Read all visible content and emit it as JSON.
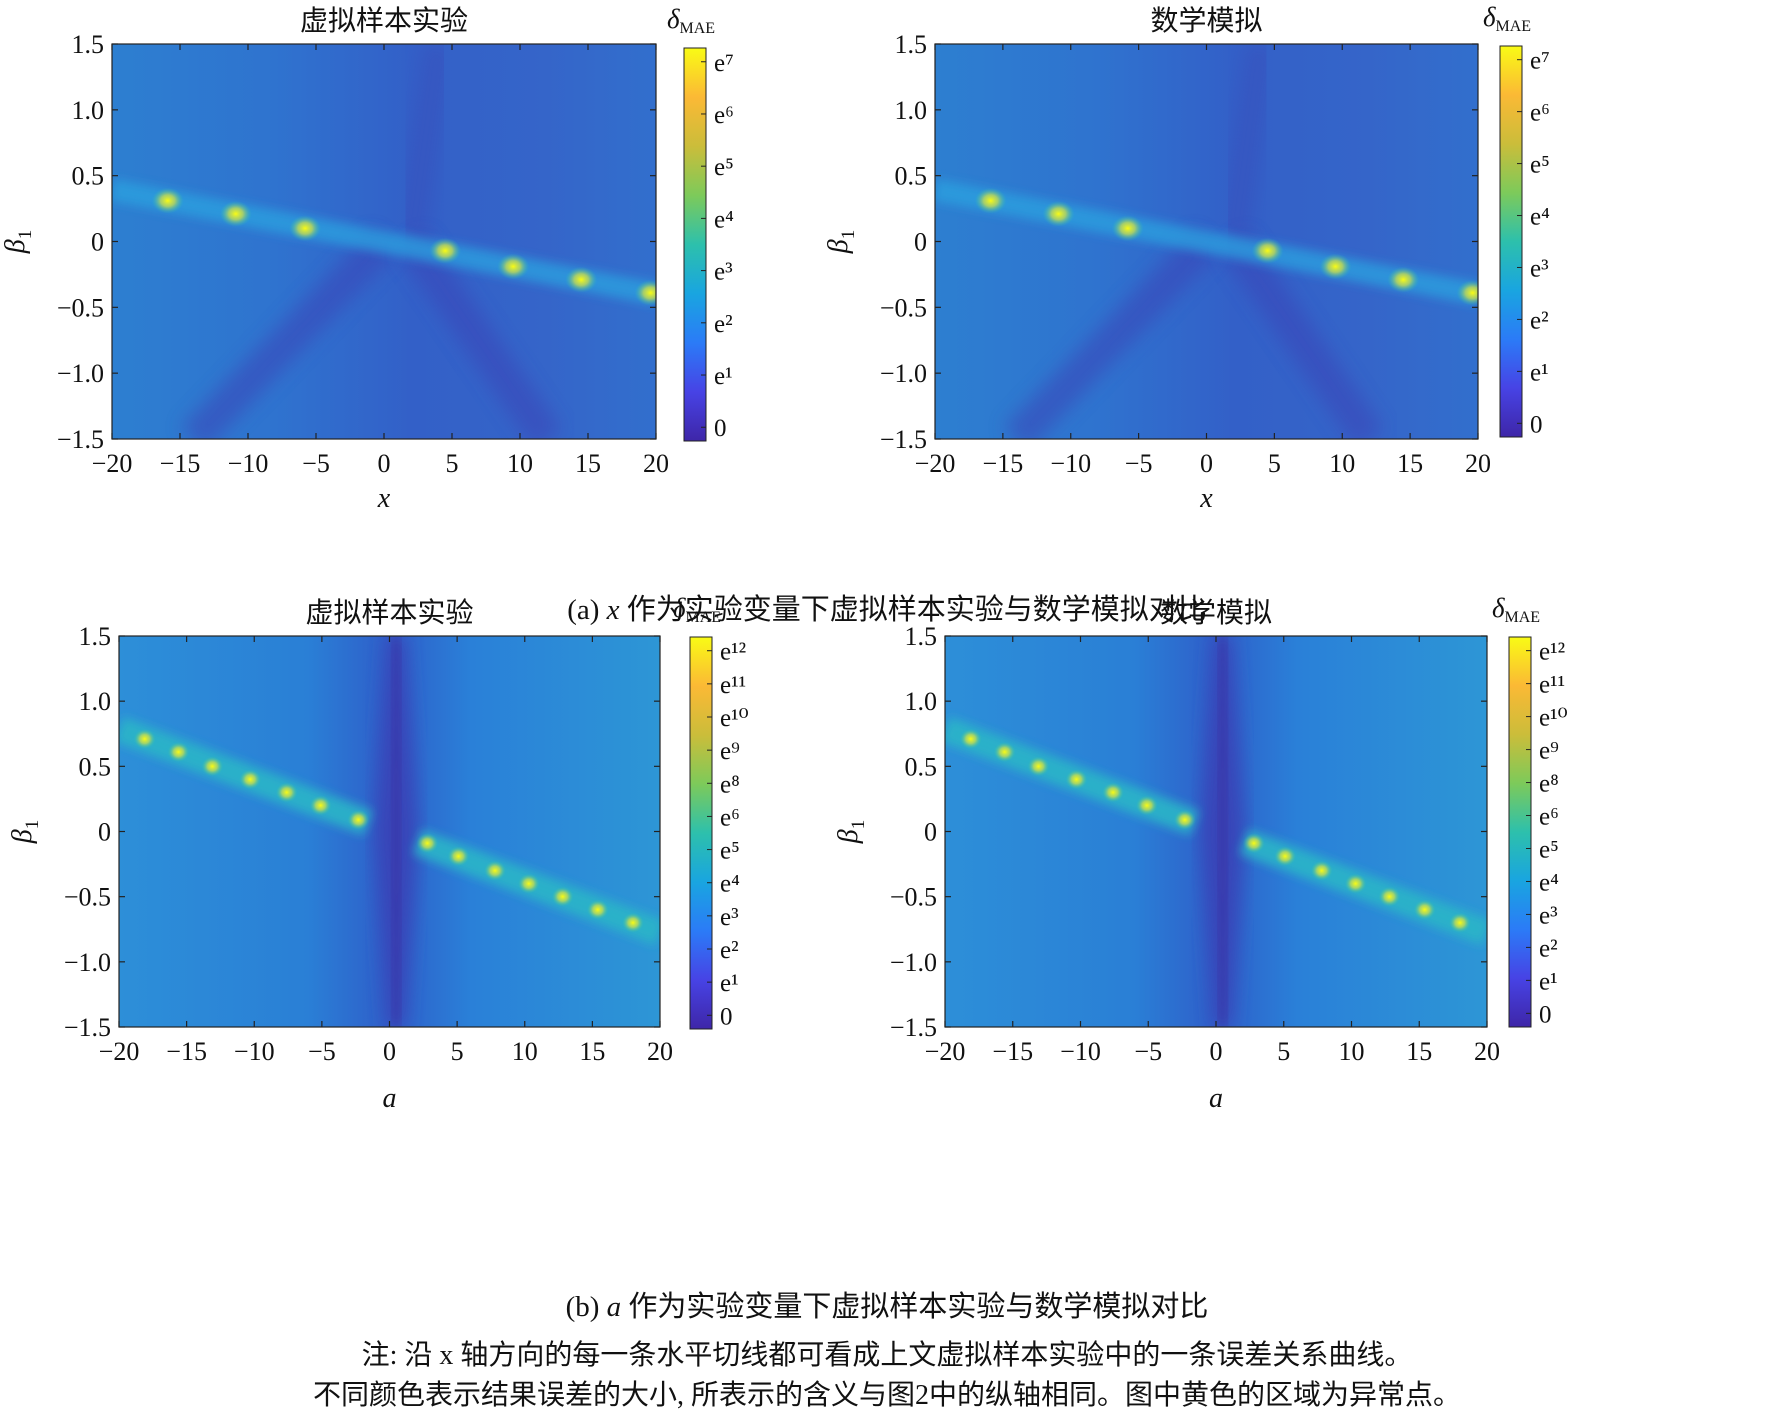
{
  "caption_a": {
    "letter": "(a)",
    "var": "x",
    "text": "作为实验变量下虚拟样本实验与数学模拟对比"
  },
  "caption_b": {
    "letter": "(b)",
    "var": "a",
    "text": "作为实验变量下虚拟样本实验与数学模拟对比"
  },
  "note": {
    "line1": "注: 沿 x 轴方向的每一条水平切线都可看成上文虚拟样本实验中的一条误差关系曲线。",
    "line2": "不同颜色表示结果误差的大小, 所表示的含义与图2中的纵轴相同。图中黄色的区域为异常点。"
  },
  "colormap": [
    "#3e26a8",
    "#4743e5",
    "#2b7bf7",
    "#19a5e0",
    "#2dc0ac",
    "#7dca5a",
    "#cbbd3a",
    "#fbb935",
    "#f9fb15"
  ],
  "chart_data": [
    {
      "id": "a1",
      "type": "heatmap",
      "title": "虚拟样本实验",
      "xlabel": "x",
      "ylabel": "β",
      "ylabel_sub": "1",
      "xlim": [
        -20,
        20
      ],
      "ylim": [
        -1.5,
        1.5
      ],
      "xticks": [
        "−20",
        "−15",
        "−10",
        "−5",
        "0",
        "5",
        "10",
        "15",
        "20"
      ],
      "yticks": [
        "1.5",
        "1.0",
        "0.5",
        "0",
        "−0.5",
        "−1.0",
        "−1.5"
      ],
      "colorbar": {
        "label": "δ",
        "label_sub": "MAE",
        "ticks": [
          "e⁷",
          "e⁶",
          "e⁵",
          "e⁴",
          "e³",
          "e²",
          "e¹",
          "0"
        ]
      },
      "anomalies": [
        [
          -15.9,
          0.31
        ],
        [
          -10.9,
          0.21
        ],
        [
          -5.8,
          0.1
        ],
        [
          4.5,
          -0.07
        ],
        [
          9.5,
          -0.19
        ],
        [
          14.5,
          -0.29
        ],
        [
          19.6,
          -0.39
        ]
      ]
    },
    {
      "id": "a2",
      "type": "heatmap",
      "title": "数学模拟",
      "xlabel": "x",
      "ylabel": "β",
      "ylabel_sub": "1",
      "xlim": [
        -20,
        20
      ],
      "ylim": [
        -1.5,
        1.5
      ],
      "xticks": [
        "−20",
        "−15",
        "−10",
        "−5",
        "0",
        "5",
        "10",
        "15",
        "20"
      ],
      "yticks": [
        "1.5",
        "1.0",
        "0.5",
        "0",
        "−0.5",
        "−1.0",
        "−1.5"
      ],
      "colorbar": {
        "label": "δ",
        "label_sub": "MAE",
        "ticks": [
          "e⁷",
          "e⁶",
          "e⁵",
          "e⁴",
          "e³",
          "e²",
          "e¹",
          "0"
        ]
      },
      "anomalies": [
        [
          -15.9,
          0.31
        ],
        [
          -10.9,
          0.21
        ],
        [
          -5.8,
          0.1
        ],
        [
          4.5,
          -0.07
        ],
        [
          9.5,
          -0.19
        ],
        [
          14.5,
          -0.29
        ],
        [
          19.6,
          -0.39
        ]
      ]
    },
    {
      "id": "b1",
      "type": "heatmap",
      "title": "虚拟样本实验",
      "xlabel": "a",
      "ylabel": "β",
      "ylabel_sub": "1",
      "xlim": [
        -20,
        20
      ],
      "ylim": [
        -1.5,
        1.5
      ],
      "xticks": [
        "−20",
        "−15",
        "−10",
        "−5",
        "0",
        "5",
        "10",
        "15",
        "20"
      ],
      "yticks": [
        "1.5",
        "1.0",
        "0.5",
        "0",
        "−0.5",
        "−1.0",
        "−1.5"
      ],
      "colorbar": {
        "label": "δ",
        "label_sub": "MAE",
        "ticks": [
          "e¹²",
          "e¹¹",
          "e¹⁰",
          "e⁹",
          "e⁸",
          "e⁶",
          "e⁵",
          "e⁴",
          "e³",
          "e²",
          "e¹",
          "0"
        ]
      },
      "anomalies": [
        [
          -18.1,
          0.71
        ],
        [
          -15.6,
          0.61
        ],
        [
          -13.1,
          0.5
        ],
        [
          -10.3,
          0.4
        ],
        [
          -7.6,
          0.3
        ],
        [
          -5.1,
          0.2
        ],
        [
          -2.3,
          0.09
        ],
        [
          2.8,
          -0.09
        ],
        [
          5.1,
          -0.19
        ],
        [
          7.8,
          -0.3
        ],
        [
          10.3,
          -0.4
        ],
        [
          12.8,
          -0.5
        ],
        [
          15.4,
          -0.6
        ],
        [
          18.0,
          -0.7
        ]
      ]
    },
    {
      "id": "b2",
      "type": "heatmap",
      "title": "数学模拟",
      "xlabel": "a",
      "ylabel": "β",
      "ylabel_sub": "1",
      "xlim": [
        -20,
        20
      ],
      "ylim": [
        -1.5,
        1.5
      ],
      "xticks": [
        "−20",
        "−15",
        "−10",
        "−5",
        "0",
        "5",
        "10",
        "15",
        "20"
      ],
      "yticks": [
        "1.5",
        "1.0",
        "0.5",
        "0",
        "−0.5",
        "−1.0",
        "−1.5"
      ],
      "colorbar": {
        "label": "δ",
        "label_sub": "MAE",
        "ticks": [
          "e¹²",
          "e¹¹",
          "e¹⁰",
          "e⁹",
          "e⁸",
          "e⁶",
          "e⁵",
          "e⁴",
          "e³",
          "e²",
          "e¹",
          "0"
        ]
      },
      "anomalies": [
        [
          -18.1,
          0.71
        ],
        [
          -15.6,
          0.61
        ],
        [
          -13.1,
          0.5
        ],
        [
          -10.3,
          0.4
        ],
        [
          -7.6,
          0.3
        ],
        [
          -5.1,
          0.2
        ],
        [
          -2.3,
          0.09
        ],
        [
          2.8,
          -0.09
        ],
        [
          5.1,
          -0.19
        ],
        [
          7.8,
          -0.3
        ],
        [
          10.3,
          -0.4
        ],
        [
          12.8,
          -0.5
        ],
        [
          15.4,
          -0.6
        ],
        [
          18.0,
          -0.7
        ]
      ]
    }
  ]
}
